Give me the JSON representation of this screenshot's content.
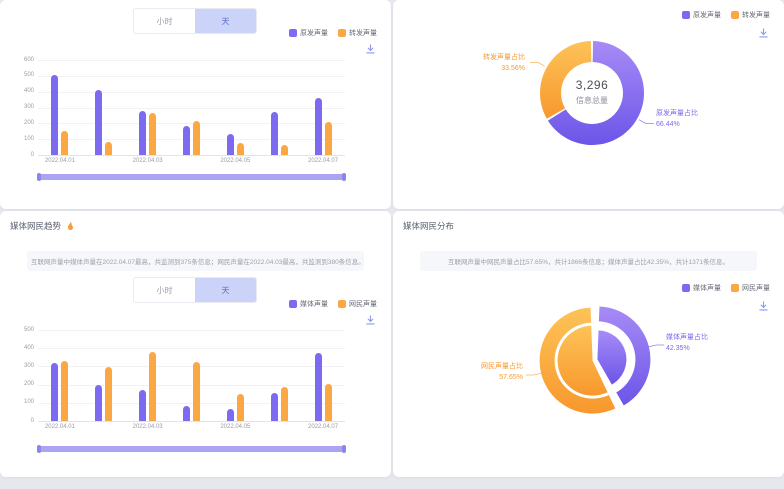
{
  "app": {
    "background": "#e7e8ee",
    "panel_background": "#ffffff"
  },
  "colors": {
    "purple": "#7c6af0",
    "orange": "#fba844",
    "purple_grad_from": "#a78bf7",
    "purple_grad_to": "#6c55e8",
    "orange_grad_from": "#fdc358",
    "orange_grad_to": "#f8982d",
    "axis_text": "#9a9da8",
    "grid_line": "#f1f1f6",
    "datazoom": "#aaa4f3",
    "legend_text": "#666b76",
    "summary_bg": "#f6f7fa",
    "summary_text": "#9da1ad",
    "title_text": "#5b6270",
    "toggle_active_bg": "#ccd3f9",
    "toggle_active_text": "#5d6cc3",
    "download_icon": "#8e99f3",
    "hot_icon": "#fb9a3c"
  },
  "panels": {
    "top_left": {
      "toggle": {
        "options": [
          "小时",
          "天"
        ],
        "selected": "天"
      },
      "legend": [
        {
          "label": "原发声量",
          "color": "#7c6af0"
        },
        {
          "label": "转发声量",
          "color": "#fba844"
        }
      ]
    },
    "top_right": {
      "legend": [
        {
          "label": "原发声量",
          "color": "#7c6af0"
        },
        {
          "label": "转发声量",
          "color": "#fba844"
        }
      ]
    },
    "bottom_left": {
      "title": "媒体网民趋势",
      "summary": "互联网声量中媒体声量在2022.04.07最高，共监测到375条信息；网民声量在2022.04.03最高，共监测到380条信息。",
      "toggle": {
        "options": [
          "小时",
          "天"
        ],
        "selected": "天"
      },
      "legend": [
        {
          "label": "媒体声量",
          "color": "#7c6af0"
        },
        {
          "label": "网民声量",
          "color": "#fba844"
        }
      ]
    },
    "bottom_right": {
      "title": "媒体网民分布",
      "summary": "互联网声量中网民声量占比57.65%，共计1866条信息；媒体声量占比42.35%，共计1371条信息。",
      "legend": [
        {
          "label": "媒体声量",
          "color": "#7c6af0"
        },
        {
          "label": "网民声量",
          "color": "#fba844"
        }
      ]
    }
  },
  "chart_data": [
    {
      "type": "bar",
      "panel": "top-left",
      "title": "",
      "xlabel": "",
      "ylabel": "",
      "ylim": [
        0,
        600
      ],
      "ytick_step": 100,
      "grid": true,
      "legend_position": "top-right",
      "categories": [
        "2022.04.01",
        "2022.04.02",
        "2022.04.03",
        "2022.04.04",
        "2022.04.05",
        "2022.04.06",
        "2022.04.07"
      ],
      "x_tick_labels_visible": [
        "2022.04.01",
        "2022.04.03",
        "2022.04.05",
        "2022.04.07"
      ],
      "series": [
        {
          "name": "原发声量",
          "color": "#7c6af0",
          "values": [
            505,
            410,
            280,
            185,
            130,
            270,
            360
          ]
        },
        {
          "name": "转发声量",
          "color": "#fba844",
          "values": [
            150,
            85,
            265,
            215,
            75,
            65,
            210
          ]
        }
      ]
    },
    {
      "type": "pie",
      "subtype": "donut",
      "panel": "top-right",
      "title": "",
      "legend_position": "top-right",
      "center_value": "3,296",
      "center_label": "信息总量",
      "slices": [
        {
          "name": "原发声量",
          "label": "原发声量占比",
          "percent": 66.44,
          "percent_text": "66.44%",
          "color": "#7c6af0"
        },
        {
          "name": "转发声量",
          "label": "转发声量占比",
          "percent": 33.56,
          "percent_text": "33.56%",
          "color": "#fba844"
        }
      ]
    },
    {
      "type": "bar",
      "panel": "bottom-left",
      "title": "媒体网民趋势",
      "xlabel": "",
      "ylabel": "",
      "ylim": [
        0,
        500
      ],
      "ytick_step": 100,
      "grid": true,
      "legend_position": "top-right",
      "categories": [
        "2022.04.01",
        "2022.04.02",
        "2022.04.03",
        "2022.04.04",
        "2022.04.05",
        "2022.04.06",
        "2022.04.07"
      ],
      "x_tick_labels_visible": [
        "2022.04.01",
        "2022.04.03",
        "2022.04.05",
        "2022.04.07"
      ],
      "series": [
        {
          "name": "媒体声量",
          "color": "#7c6af0",
          "values": [
            320,
            200,
            170,
            80,
            65,
            155,
            375
          ]
        },
        {
          "name": "网民声量",
          "color": "#fba844",
          "values": [
            330,
            295,
            380,
            325,
            150,
            185,
            205
          ]
        }
      ]
    },
    {
      "type": "pie",
      "subtype": "two-level-donut",
      "panel": "bottom-right",
      "title": "媒体网民分布",
      "legend_position": "top-right",
      "slices": [
        {
          "name": "媒体声量",
          "label": "媒体声量占比",
          "percent": 42.35,
          "percent_text": "42.35%",
          "color": "#7c6af0"
        },
        {
          "name": "网民声量",
          "label": "网民声量占比",
          "percent": 57.65,
          "percent_text": "57.65%",
          "color": "#fba844"
        }
      ]
    }
  ]
}
